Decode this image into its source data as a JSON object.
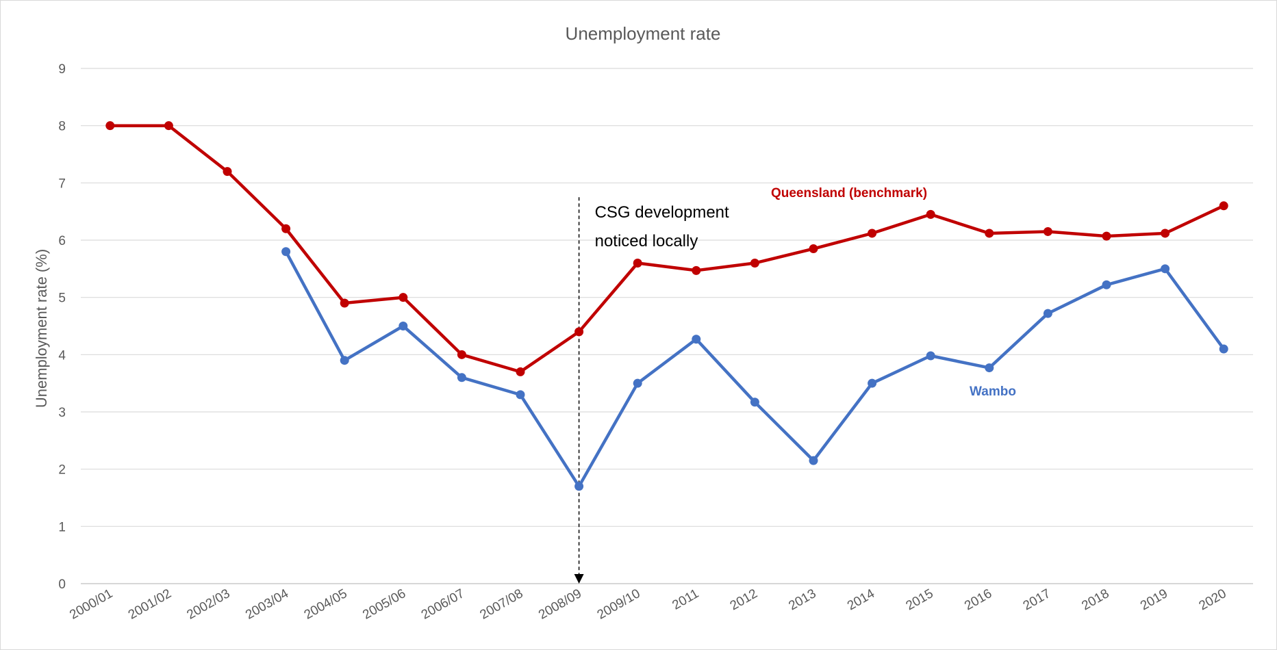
{
  "chart_data": {
    "type": "line",
    "title": "Unemployment rate",
    "xlabel": "",
    "ylabel": "Unemployment rate (%)",
    "ylim": [
      0,
      9
    ],
    "yticks": [
      "0",
      "1",
      "2",
      "3",
      "4",
      "5",
      "6",
      "7",
      "8",
      "9"
    ],
    "grid": true,
    "legend": "none",
    "categories": [
      "2000/01",
      "2001/02",
      "2002/03",
      "2003/04",
      "2004/05",
      "2005/06",
      "2006/07",
      "2007/08",
      "2008/09",
      "2009/10",
      "2011",
      "2012",
      "2013",
      "2014",
      "2015",
      "2016",
      "2017",
      "2018",
      "2019",
      "2020"
    ],
    "series": [
      {
        "name": "Queensland (benchmark)",
        "color": "#c00000",
        "values": [
          8.0,
          8.0,
          7.2,
          6.2,
          4.9,
          5.0,
          4.0,
          3.7,
          4.4,
          5.6,
          5.47,
          5.6,
          5.85,
          6.12,
          6.45,
          6.12,
          6.15,
          6.07,
          6.12,
          6.6
        ]
      },
      {
        "name": "Wambo",
        "color": "#4472c4",
        "values": [
          null,
          null,
          null,
          5.8,
          3.9,
          4.5,
          3.6,
          3.3,
          1.7,
          3.5,
          4.27,
          3.17,
          2.15,
          3.5,
          3.98,
          3.77,
          4.72,
          5.22,
          5.5,
          4.1
        ]
      }
    ],
    "annotations": [
      {
        "text_line1": "CSG development",
        "text_line2": "noticed locally",
        "x": "2008/09"
      }
    ]
  }
}
